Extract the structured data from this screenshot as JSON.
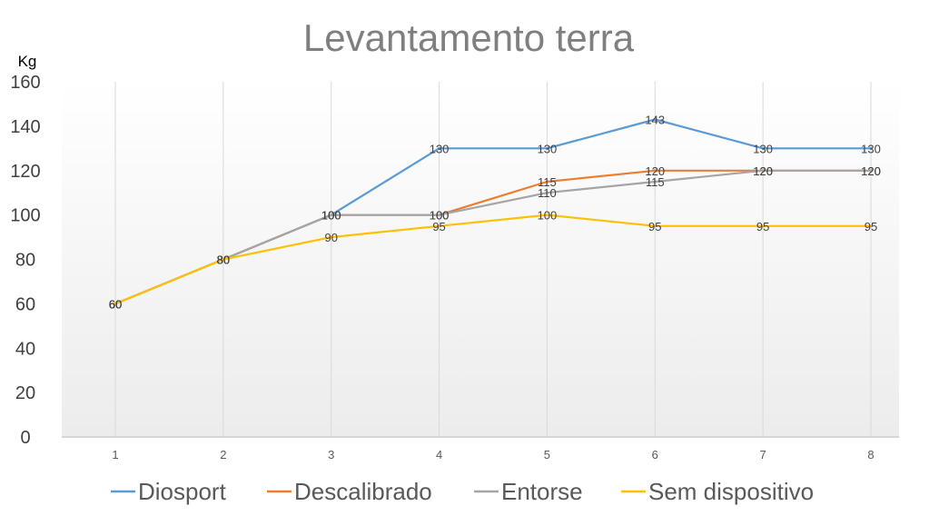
{
  "chart_data": {
    "type": "line",
    "title": "Levantamento terra",
    "ylabel": "Kg",
    "xlabel": "",
    "categories": [
      "1",
      "2",
      "3",
      "4",
      "5",
      "6",
      "7",
      "8"
    ],
    "ylim": [
      0,
      160
    ],
    "yticks": [
      0,
      20,
      40,
      60,
      80,
      100,
      120,
      140,
      160
    ],
    "grid": "vertical",
    "legend_position": "bottom",
    "series": [
      {
        "name": "Diosport",
        "color": "#5B9BD5",
        "values": [
          60,
          80,
          100,
          130,
          130,
          143,
          130,
          130
        ]
      },
      {
        "name": "Descalibrado",
        "color": "#ED7D31",
        "values": [
          60,
          80,
          100,
          100,
          115,
          120,
          120,
          120
        ]
      },
      {
        "name": "Entorse",
        "color": "#A5A5A5",
        "values": [
          60,
          80,
          100,
          100,
          110,
          115,
          120,
          120
        ]
      },
      {
        "name": "Sem dispositivo",
        "color": "#FFC000",
        "values": [
          60,
          80,
          90,
          95,
          100,
          95,
          95,
          95
        ]
      }
    ]
  }
}
